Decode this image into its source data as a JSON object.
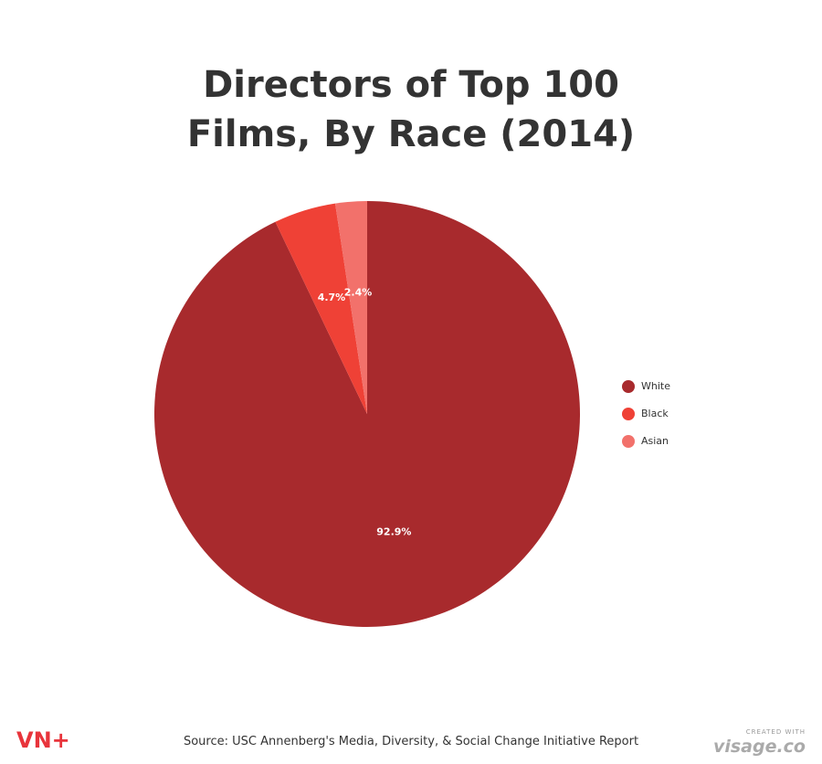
{
  "chart_data": {
    "type": "pie",
    "title": "Directors of Top 100 Films, By Race (2014)",
    "categories": [
      "White",
      "Black",
      "Asian"
    ],
    "values": [
      92.9,
      4.7,
      2.4
    ],
    "value_labels": [
      "92.9%",
      "4.7%",
      "2.4%"
    ],
    "colors": [
      "#a82a2d",
      "#ef4136",
      "#f2716b"
    ],
    "legend": "right"
  },
  "footer": {
    "source": "Source: USC Annenberg's Media, Diversity, & Social Change Initiative Report",
    "logo": "VN+",
    "credit_small": "CREATED WITH",
    "credit_brand": "visage.co"
  }
}
